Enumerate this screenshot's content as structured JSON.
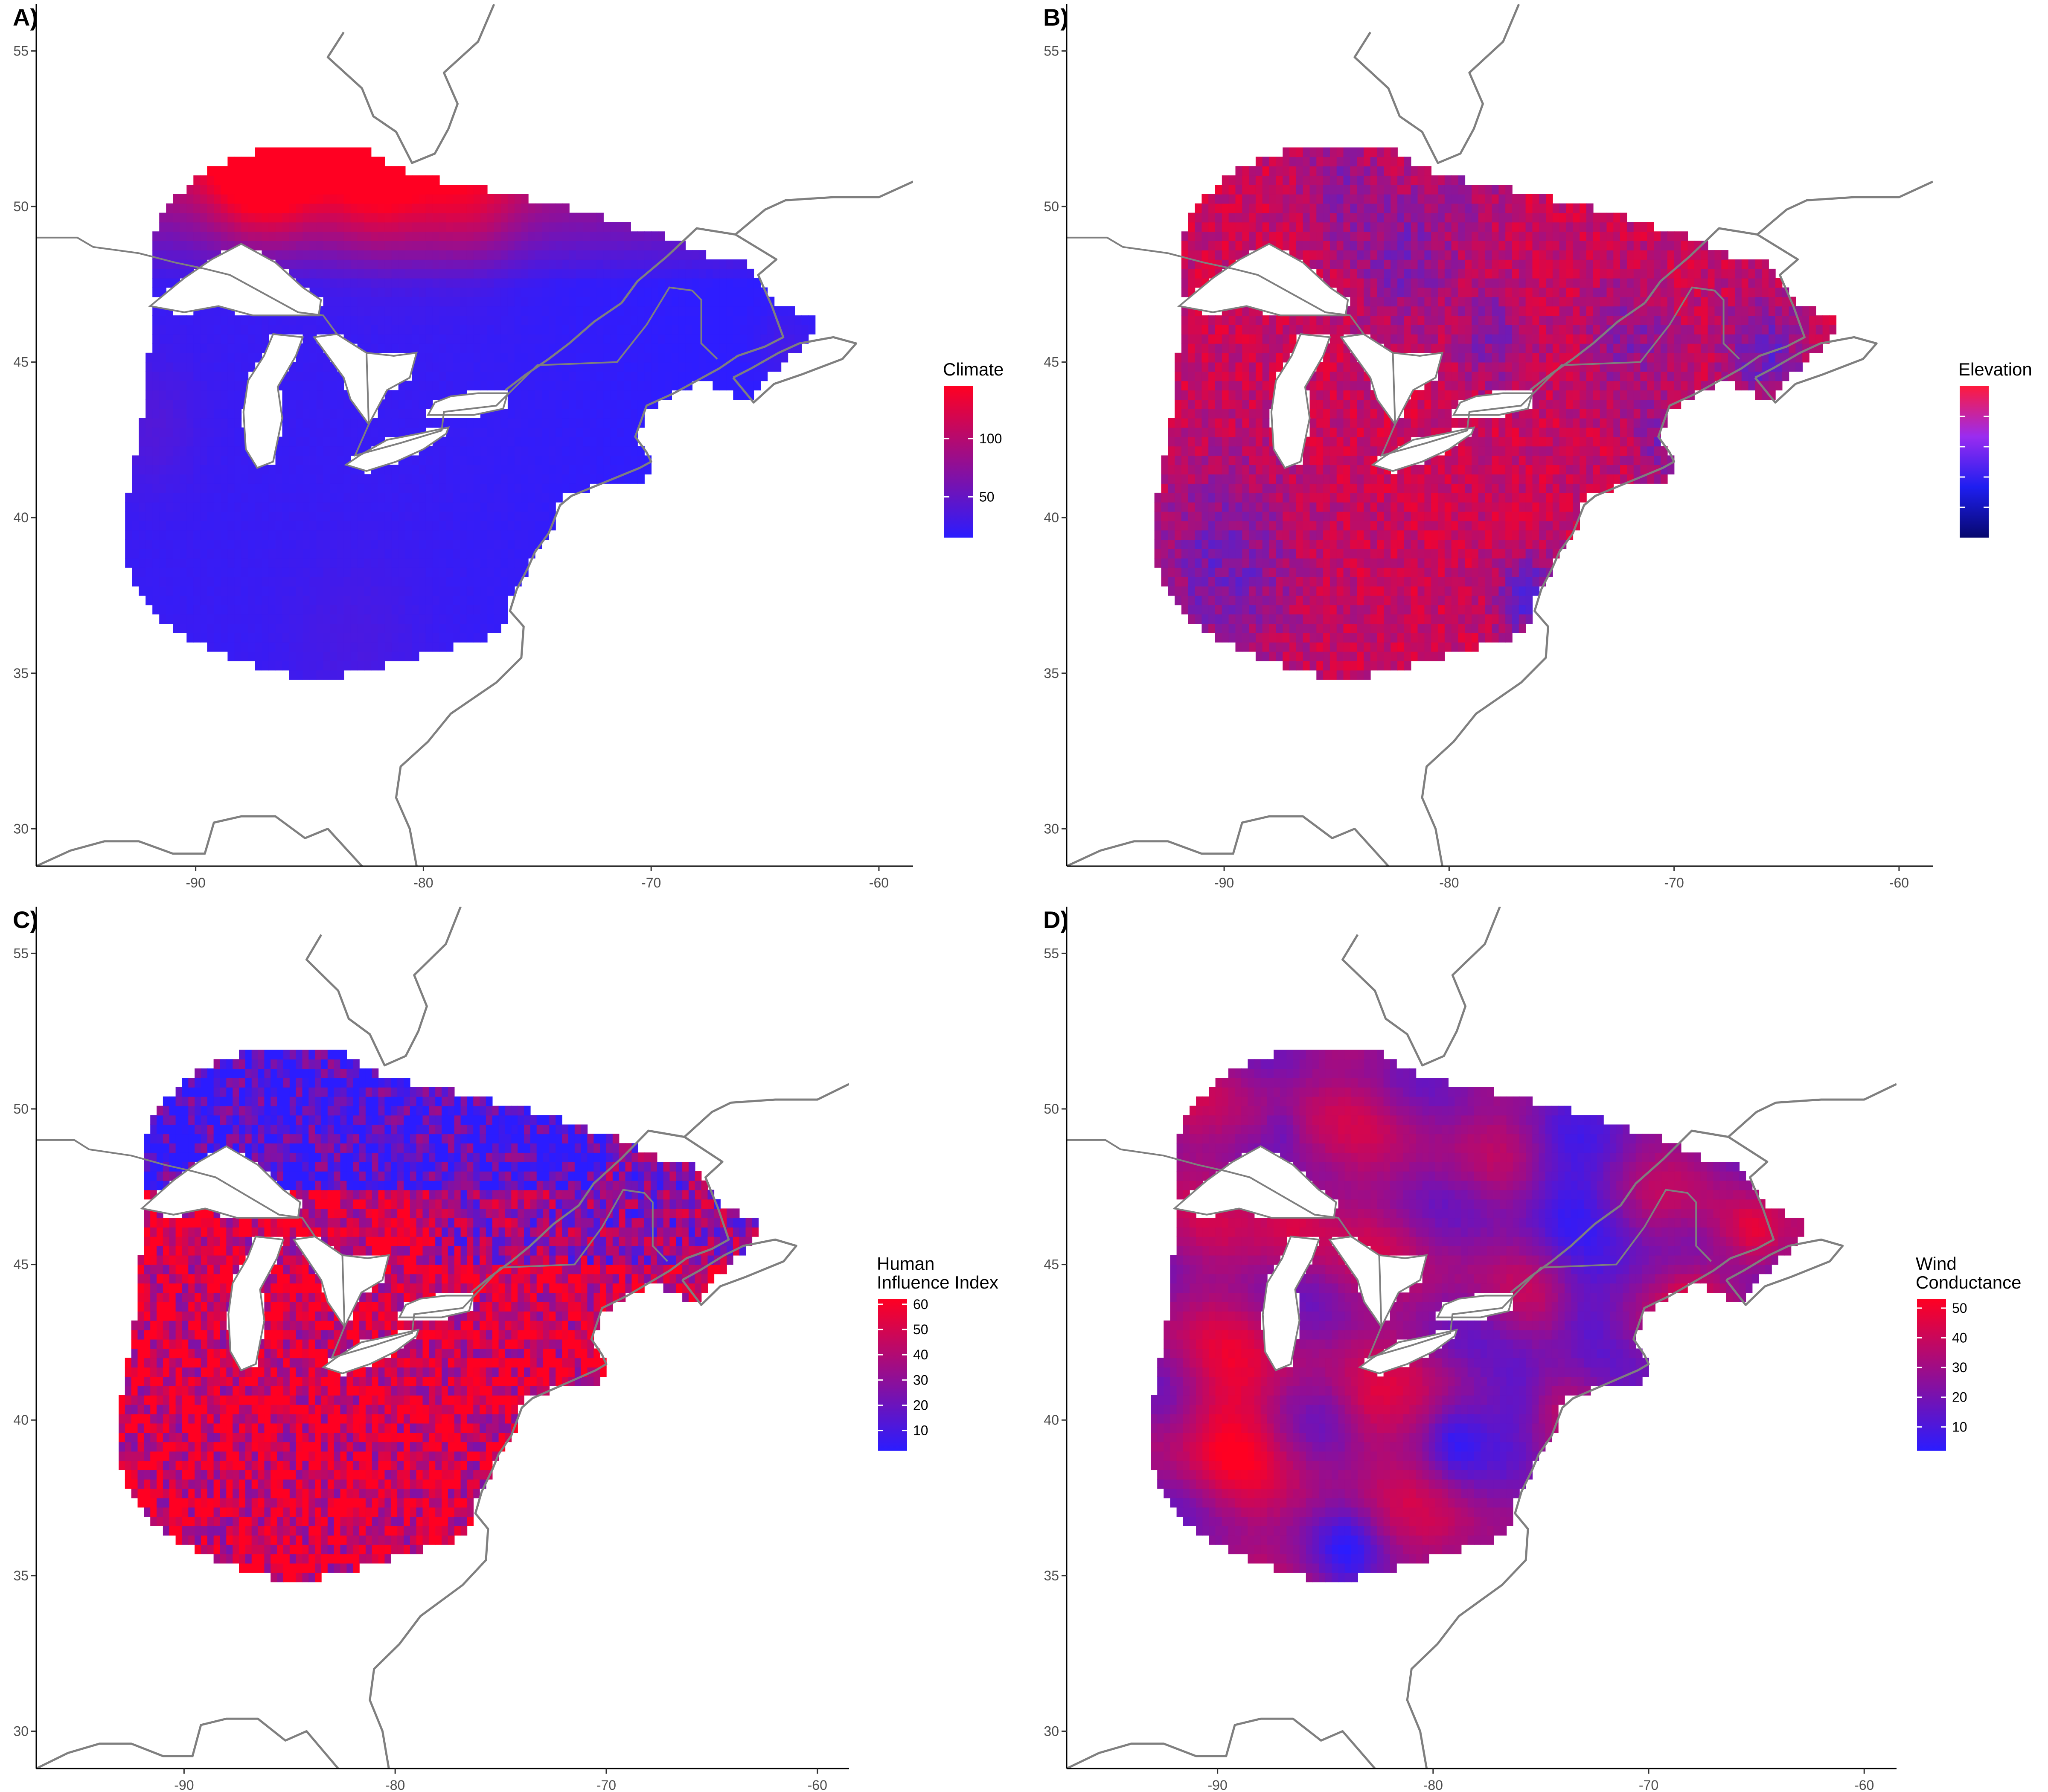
{
  "panels": [
    {
      "id": "A",
      "label": "A)",
      "legend": {
        "title_lines": [
          "Climate"
        ],
        "ticks": [
          "100",
          "50"
        ],
        "tick_values": [
          100,
          50
        ],
        "range": [
          15,
          145
        ],
        "colors": [
          "#ff0022",
          "#2b1cff"
        ]
      },
      "field": {
        "type": "climate",
        "base_low": "#2e1dff",
        "base_high": "#ff0022"
      }
    },
    {
      "id": "B",
      "label": "B)",
      "legend": {
        "title_lines": [
          "Elevation"
        ],
        "ticks": [],
        "tick_values": [
          0.8,
          0.6,
          0.4,
          0.2
        ],
        "range": [
          0,
          1
        ],
        "colors": [
          "#ff1a3c",
          "#9a2cf0",
          "#1e1ef0",
          "#07086e"
        ]
      },
      "field": {
        "type": "elevation",
        "base_low": "#2828ff",
        "base_high": "#ff0022"
      }
    },
    {
      "id": "C",
      "label": "C)",
      "legend": {
        "title_lines": [
          "Human",
          "Influence Index"
        ],
        "ticks": [
          "60",
          "50",
          "40",
          "30",
          "20",
          "10"
        ],
        "tick_values": [
          60,
          50,
          40,
          30,
          20,
          10
        ],
        "range": [
          2,
          62
        ],
        "colors": [
          "#ff0022",
          "#2b1cff"
        ]
      },
      "field": {
        "type": "human",
        "base_low": "#2b1cff",
        "base_high": "#ff0022"
      }
    },
    {
      "id": "D",
      "label": "D)",
      "legend": {
        "title_lines": [
          "Wind",
          "Conductance"
        ],
        "ticks": [
          "50",
          "40",
          "30",
          "20",
          "10"
        ],
        "tick_values": [
          50,
          40,
          30,
          20,
          10
        ],
        "range": [
          2,
          53
        ],
        "colors": [
          "#ff0022",
          "#2b1cff"
        ]
      },
      "field": {
        "type": "wind",
        "base_low": "#2b1cff",
        "base_high": "#ff0022"
      }
    }
  ],
  "axes": {
    "x_ticks": [
      "-90",
      "-80",
      "-70",
      "-60"
    ],
    "x_values": [
      -90,
      -80,
      -70,
      -60
    ],
    "y_ticks": [
      "55",
      "50",
      "45",
      "40",
      "35",
      "30"
    ],
    "y_values": [
      55,
      50,
      45,
      40,
      35,
      30
    ],
    "lon_range": [
      -97,
      -58.5
    ],
    "lat_range": [
      28.8,
      56.5
    ]
  }
}
